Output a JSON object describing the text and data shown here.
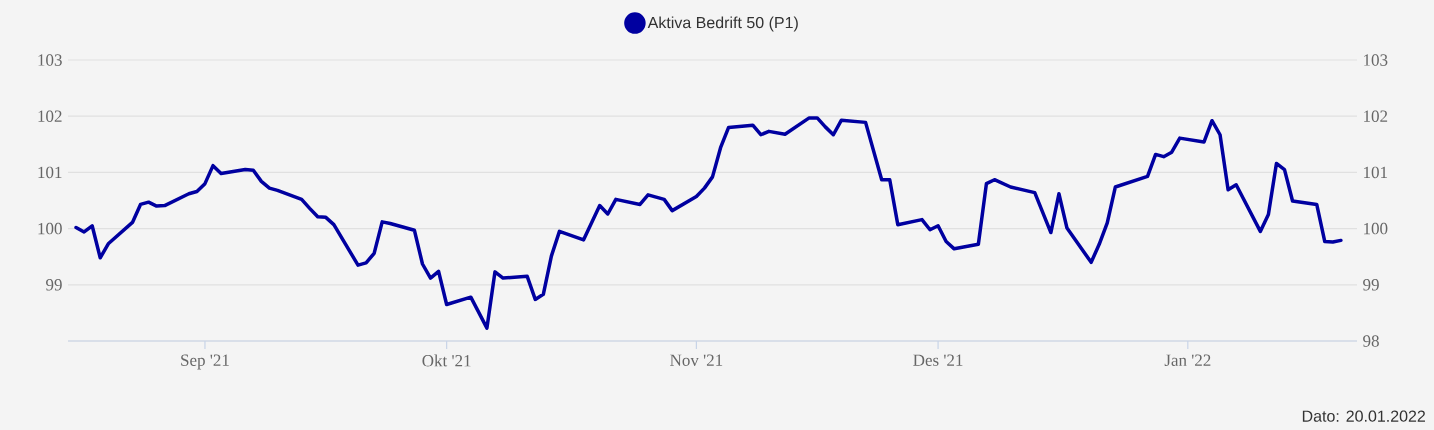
{
  "chart_data": {
    "type": "line",
    "x": [
      "2021-08-16",
      "2021-08-17",
      "2021-08-18",
      "2021-08-19",
      "2021-08-20",
      "2021-08-23",
      "2021-08-24",
      "2021-08-25",
      "2021-08-26",
      "2021-08-27",
      "2021-08-30",
      "2021-08-31",
      "2021-09-01",
      "2021-09-02",
      "2021-09-03",
      "2021-09-06",
      "2021-09-07",
      "2021-09-08",
      "2021-09-09",
      "2021-09-10",
      "2021-09-13",
      "2021-09-14",
      "2021-09-15",
      "2021-09-16",
      "2021-09-17",
      "2021-09-20",
      "2021-09-21",
      "2021-09-22",
      "2021-09-23",
      "2021-09-24",
      "2021-09-27",
      "2021-09-28",
      "2021-09-29",
      "2021-09-30",
      "2021-10-01",
      "2021-10-04",
      "2021-10-06",
      "2021-10-07",
      "2021-10-08",
      "2021-10-11",
      "2021-10-12",
      "2021-10-13",
      "2021-10-14",
      "2021-10-15",
      "2021-10-18",
      "2021-10-20",
      "2021-10-21",
      "2021-10-22",
      "2021-10-25",
      "2021-10-26",
      "2021-10-28",
      "2021-10-29",
      "2021-11-01",
      "2021-11-02",
      "2021-11-03",
      "2021-11-04",
      "2021-11-05",
      "2021-11-08",
      "2021-11-09",
      "2021-11-10",
      "2021-11-12",
      "2021-11-15",
      "2021-11-16",
      "2021-11-17",
      "2021-11-18",
      "2021-11-19",
      "2021-11-22",
      "2021-11-24",
      "2021-11-25",
      "2021-11-26",
      "2021-11-29",
      "2021-11-30",
      "2021-12-01",
      "2021-12-02",
      "2021-12-03",
      "2021-12-06",
      "2021-12-07",
      "2021-12-08",
      "2021-12-10",
      "2021-12-13",
      "2021-12-15",
      "2021-12-16",
      "2021-12-17",
      "2021-12-20",
      "2021-12-21",
      "2021-12-22",
      "2021-12-23",
      "2021-12-27",
      "2021-12-28",
      "2021-12-29",
      "2021-12-30",
      "2021-12-31",
      "2022-01-03",
      "2022-01-04",
      "2022-01-05",
      "2022-01-06",
      "2022-01-07",
      "2022-01-10",
      "2022-01-11",
      "2022-01-12",
      "2022-01-13",
      "2022-01-14",
      "2022-01-17",
      "2022-01-18",
      "2022-01-19",
      "2022-01-20"
    ],
    "series": [
      {
        "name": "Aktiva Bedrift 50 (P1)",
        "color": "#0000a0",
        "values": [
          100.02,
          99.94,
          100.05,
          99.48,
          99.73,
          100.11,
          100.43,
          100.47,
          100.4,
          100.41,
          100.62,
          100.66,
          100.8,
          101.12,
          100.98,
          101.05,
          101.04,
          100.84,
          100.72,
          100.68,
          100.52,
          100.36,
          100.21,
          100.2,
          100.07,
          99.35,
          99.39,
          99.56,
          100.12,
          100.09,
          99.97,
          99.37,
          99.12,
          99.24,
          98.65,
          98.78,
          98.23,
          99.23,
          99.12,
          99.15,
          98.74,
          98.83,
          99.51,
          99.95,
          99.8,
          100.41,
          100.26,
          100.52,
          100.43,
          100.6,
          100.52,
          100.32,
          100.57,
          100.72,
          100.92,
          101.44,
          101.8,
          101.84,
          101.67,
          101.73,
          101.68,
          101.97,
          101.97,
          101.81,
          101.67,
          101.93,
          101.89,
          100.87,
          100.87,
          100.07,
          100.16,
          99.98,
          100.05,
          99.77,
          99.64,
          99.72,
          100.8,
          100.87,
          100.74,
          100.64,
          99.93,
          100.62,
          100.01,
          99.4,
          99.72,
          100.1,
          100.74,
          100.93,
          101.32,
          101.28,
          101.36,
          101.61,
          101.54,
          101.92,
          101.67,
          100.69,
          100.78,
          99.95,
          100.25,
          101.16,
          101.05,
          100.49,
          100.43,
          99.77,
          99.76,
          99.79
        ]
      }
    ],
    "xlim": [
      "2021-08-15",
      "2022-01-22"
    ],
    "xticks": [
      {
        "value": "2021-09-01",
        "label": "Sep '21"
      },
      {
        "value": "2021-10-01",
        "label": "Okt '21"
      },
      {
        "value": "2021-11-01",
        "label": "Nov '21"
      },
      {
        "value": "2021-12-01",
        "label": "Des '21"
      },
      {
        "value": "2022-01-01",
        "label": "Jan '22"
      }
    ],
    "ylim": [
      98,
      103
    ],
    "yticks": [
      {
        "value": 98,
        "label": null
      },
      99,
      100,
      101,
      102,
      103
    ],
    "y2lim": [
      98,
      103
    ],
    "y2ticks": [
      98,
      99,
      100,
      101,
      102,
      103
    ],
    "grid": "y",
    "legend": "top",
    "marker": "none",
    "line_style": "solid",
    "annotations": [
      "Dato: 20.01.2022"
    ]
  }
}
